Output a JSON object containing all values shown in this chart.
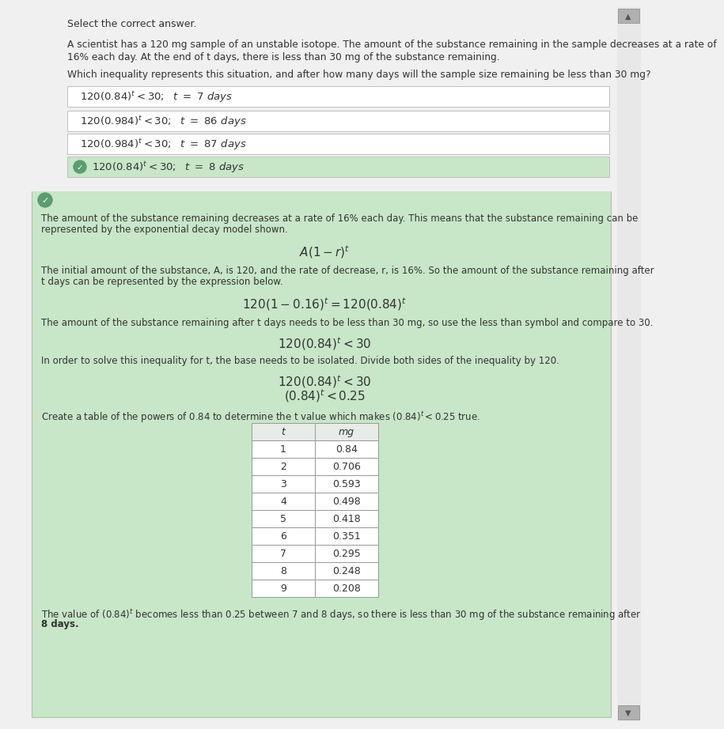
{
  "bg_color": "#f0f0f0",
  "white": "#ffffff",
  "green_bg": "#c8e6c8",
  "light_green_check": "#5a9e6f",
  "check_bg": "#5a9e6f",
  "border_color": "#c0c0c0",
  "text_color": "#333333",
  "scrollbar_bg": "#d8d8d8",
  "scrollbar_btn": "#a0a0a0",
  "header_top_text": "Select the correct answer.",
  "problem_text_line1": "A scientist has a 120 mg sample of an unstable isotope. The amount of the substance remaining in the sample decreases at a rate of",
  "problem_text_line2": "16% each day. At the end of t days, there is less than 30 mg of the substance remaining.",
  "question_text": "Which inequality represents this situation, and after how many days will the sample size remaining be less than 30 mg?",
  "choice_texts_math": [
    "120(0.84)$^t$ < 30;  $t$  =  7 days",
    "120(0.984)$^t$ < 30;  $t$  =  86 days",
    "120(0.984)$^t$ < 30;  $t$  =  87 days",
    "120(0.84)$^t$ < 30;  $t$  =  8 days"
  ],
  "choice_correct": [
    false,
    false,
    false,
    true
  ],
  "exp_para1_l1": "The amount of the substance remaining decreases at a rate of 16% each day. This means that the substance remaining can be",
  "exp_para1_l2": "represented by the exponential decay model shown.",
  "formula1": "$A(1-r)^t$",
  "exp_para2_l1": "The initial amount of the substance, A, is 120, and the rate of decrease, r, is 16%. So the amount of the substance remaining after",
  "exp_para2_l2": "t days can be represented by the expression below.",
  "formula2": "$120(1 - 0.16)^t = 120(0.84)^t$",
  "exp_para3": "The amount of the substance remaining after t days needs to be less than 30 mg, so use the less than symbol and compare to 30.",
  "formula3": "$120(0.84)^t < 30$",
  "exp_para4": "In order to solve this inequality for t, the base needs to be isolated. Divide both sides of the inequality by 120.",
  "formula4a": "$120(0.84)^t < 30$",
  "formula4b": "$(0.84)^t < 0.25$",
  "exp_para5_l1": "Create a table of the powers of 0.84 to determine the t value which makes ",
  "exp_para5_formula": "$(0.84)^t < 0.25$",
  "exp_para5_l2": " true.",
  "table_t": [
    1,
    2,
    3,
    4,
    5,
    6,
    7,
    8,
    9
  ],
  "table_mg": [
    "0.84",
    "0.706",
    "0.593",
    "0.498",
    "0.418",
    "0.351",
    "0.295",
    "0.248",
    "0.208"
  ],
  "conc_l1_a": "The value of ",
  "conc_l1_formula": "$(0.84)^t$",
  "conc_l1_b": " becomes less than 0.25 between 7 and 8 days, so there is less than 30 mg of the substance remaining after",
  "conc_l2": "8 days."
}
